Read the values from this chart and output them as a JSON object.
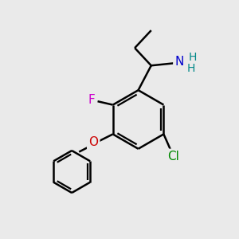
{
  "background_color": "#EAEAEA",
  "bond_color": "#000000",
  "bond_width": 1.8,
  "atom_colors": {
    "N": "#0000CC",
    "H_N": "#008888",
    "F": "#CC00CC",
    "O": "#CC0000",
    "Cl": "#008800",
    "C": "#000000"
  },
  "font_size_atom": 10,
  "figsize": [
    3.0,
    3.0
  ],
  "dpi": 100
}
